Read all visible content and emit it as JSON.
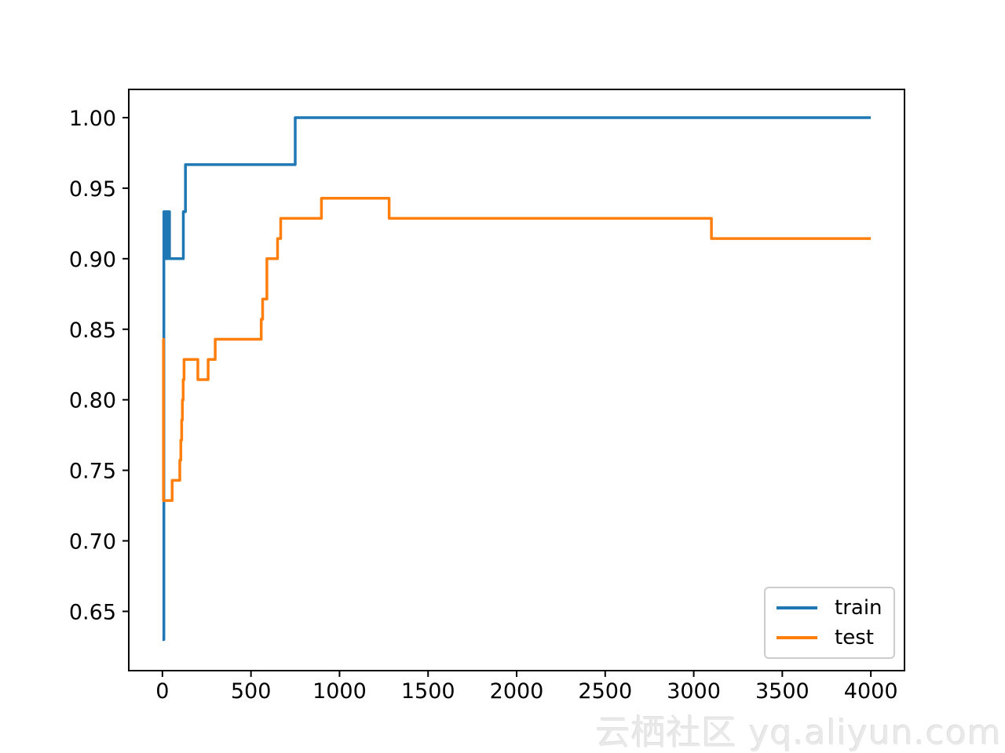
{
  "watermark": {
    "text": "云栖社区 yq.aliyun.com"
  },
  "chart_data": {
    "type": "line",
    "step": "post",
    "title": "",
    "xlabel": "",
    "ylabel": "",
    "grid": false,
    "xlim": [
      -190,
      4190
    ],
    "ylim": [
      0.608,
      1.02
    ],
    "x_ticks": {
      "values": [
        0,
        500,
        1000,
        1500,
        2000,
        2500,
        3000,
        3500,
        4000
      ],
      "labels": [
        "0",
        "500",
        "1000",
        "1500",
        "2000",
        "2500",
        "3000",
        "3500",
        "4000"
      ]
    },
    "y_ticks": {
      "values": [
        1.0,
        0.95,
        0.9,
        0.85,
        0.8,
        0.75,
        0.7,
        0.65
      ],
      "labels": [
        "1.00",
        "0.95",
        "0.90",
        "0.85",
        "0.80",
        "0.75",
        "0.70",
        "0.65"
      ]
    },
    "legend": {
      "position": "lower right"
    },
    "series": [
      {
        "name": "train",
        "color": "#1f77b4",
        "points": [
          [
            0,
            0.63
          ],
          [
            8,
            0.9333
          ],
          [
            18,
            0.9
          ],
          [
            22,
            0.9333
          ],
          [
            28,
            0.9
          ],
          [
            32,
            0.9333
          ],
          [
            40,
            0.9
          ],
          [
            118,
            0.9333
          ],
          [
            130,
            0.9667
          ],
          [
            750,
            1.0
          ],
          [
            4000,
            1.0
          ]
        ]
      },
      {
        "name": "test",
        "color": "#ff7f0e",
        "points": [
          [
            0,
            0.8429
          ],
          [
            6,
            0.7286
          ],
          [
            55,
            0.7429
          ],
          [
            98,
            0.7571
          ],
          [
            104,
            0.7714
          ],
          [
            109,
            0.7857
          ],
          [
            113,
            0.8
          ],
          [
            117,
            0.8143
          ],
          [
            122,
            0.8286
          ],
          [
            200,
            0.8143
          ],
          [
            258,
            0.8286
          ],
          [
            298,
            0.8429
          ],
          [
            558,
            0.8571
          ],
          [
            566,
            0.8714
          ],
          [
            590,
            0.9
          ],
          [
            650,
            0.9143
          ],
          [
            668,
            0.9286
          ],
          [
            898,
            0.9429
          ],
          [
            1280,
            0.9286
          ],
          [
            3100,
            0.9143
          ],
          [
            4000,
            0.9143
          ]
        ]
      }
    ]
  }
}
